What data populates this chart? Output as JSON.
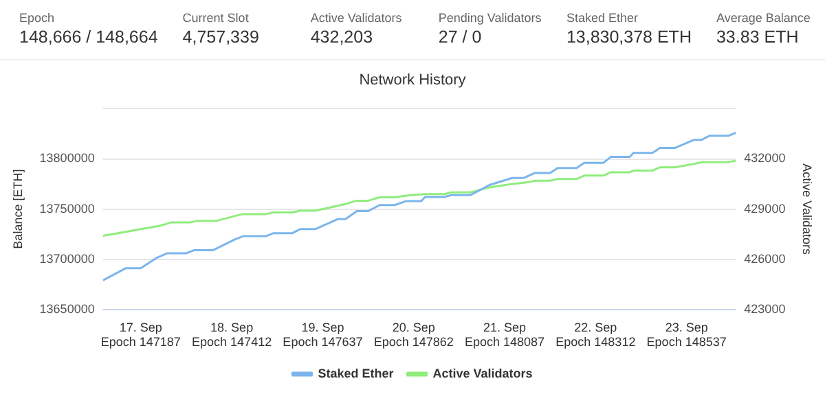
{
  "chart_data": [
    {
      "type": "other",
      "annotations": [
        "Epoch",
        "148,666 / 148,664",
        "Current Slot",
        "4,757,339",
        "Active Validators",
        "432,203",
        "Pending Validators",
        "27 / 0",
        "Staked Ether",
        "13,830,378 ETH",
        "Average Balance",
        "33.83 ETH"
      ]
    },
    {
      "type": "line",
      "title": "Network History",
      "ylabel": "Balance [ETH]",
      "y2label": "Active Validators",
      "xlim": [
        "--09-16T14:00",
        "--09-23T13:00"
      ],
      "xticks": [
        {
          "value": "--09-17",
          "label": "17. Sep\nEpoch 147187"
        },
        {
          "value": "--09-18",
          "label": "18. Sep\nEpoch 147412"
        },
        {
          "value": "--09-19",
          "label": "19. Sep\nEpoch 147637"
        },
        {
          "value": "--09-20",
          "label": "20. Sep\nEpoch 147862"
        },
        {
          "value": "--09-21",
          "label": "21. Sep\nEpoch 148087"
        },
        {
          "value": "--09-22",
          "label": "22. Sep\nEpoch 148312"
        },
        {
          "value": "--09-23",
          "label": "23. Sep\nEpoch 148537"
        }
      ],
      "ylim": [
        13650000,
        13850000
      ],
      "yticks": [
        13650000,
        13700000,
        13750000,
        13800000,
        {
          "value": 13850000,
          "label": null
        }
      ],
      "y2lim": [
        423000,
        435000
      ],
      "y2ticks": [
        423000,
        426000,
        429000,
        432000
      ],
      "grid": "y",
      "legend": "bottom",
      "marker": "none",
      "line_style": "solid",
      "series": [
        {
          "name": "Staked Ether",
          "color": "#7cb5ec",
          "x": [
            "--09-16T14:00",
            "--09-16T20:00",
            "--09-17T00:00",
            "--09-17T04:00",
            "--09-17T07:00",
            "--09-17T12:00",
            "--09-17T14:00",
            "--09-17T19:00",
            "--09-18T01:00",
            "--09-18T03:00",
            "--09-18T09:00",
            "--09-18T11:00",
            "--09-18T16:00",
            "--09-18T18:00",
            "--09-18T22:00",
            "--09-19T04:00",
            "--09-19T06:00",
            "--09-19T09:00",
            "--09-19T12:00",
            "--09-19T15:00",
            "--09-19T19:00",
            "--09-19T22:00",
            "--09-20T02:00",
            "--09-20T03:00",
            "--09-20T08:00",
            "--09-20T10:00",
            "--09-20T15:00",
            "--09-20T20:00",
            "--09-21T02:00",
            "--09-21T05:00",
            "--09-21T08:00",
            "--09-21T12:00",
            "--09-21T14:00",
            "--09-21T19:00",
            "--09-21T21:00",
            "--09-22T02:00",
            "--09-22T04:00",
            "--09-22T09:00",
            "--09-22T10:00",
            "--09-22T15:00",
            "--09-22T17:00",
            "--09-22T21:00",
            "--09-23T02:00",
            "--09-23T04:00",
            "--09-23T06:00",
            "--09-23T11:00",
            "--09-23T13:00"
          ],
          "values": [
            13679000,
            13691000,
            13691000,
            13701000,
            13706000,
            13706000,
            13709000,
            13709000,
            13720000,
            13723000,
            13723000,
            13726000,
            13726000,
            13730000,
            13730000,
            13740000,
            13740000,
            13748000,
            13748000,
            13754000,
            13754000,
            13758000,
            13758000,
            13762000,
            13762000,
            13764000,
            13764000,
            13774000,
            13781000,
            13781000,
            13786000,
            13786000,
            13791000,
            13791000,
            13796000,
            13796000,
            13802000,
            13802000,
            13806000,
            13806000,
            13811000,
            13811000,
            13819000,
            13819000,
            13823000,
            13823000,
            13826000
          ]
        },
        {
          "name": "Active Validators",
          "color": "#90ed7d",
          "axis": "y2",
          "x": [
            "--09-16T14:00",
            "--09-16T19:00",
            "--09-17T00:00",
            "--09-17T05:00",
            "--09-17T08:00",
            "--09-17T13:00",
            "--09-17T15:00",
            "--09-17T20:00",
            "--09-18T01:00",
            "--09-18T03:00",
            "--09-18T09:00",
            "--09-18T11:00",
            "--09-18T16:00",
            "--09-18T18:00",
            "--09-18T22:00",
            "--09-19T04:00",
            "--09-19T06:00",
            "--09-19T09:00",
            "--09-19T12:00",
            "--09-19T15:00",
            "--09-19T19:00",
            "--09-19T22:00",
            "--09-20T03:00",
            "--09-20T08:00",
            "--09-20T10:00",
            "--09-20T15:00",
            "--09-20T20:00",
            "--09-21T02:00",
            "--09-21T06:00",
            "--09-21T08:00",
            "--09-21T12:00",
            "--09-21T14:00",
            "--09-21T19:00",
            "--09-21T21:00",
            "--09-22T02:00",
            "--09-22T04:00",
            "--09-22T09:00",
            "--09-22T10:00",
            "--09-22T15:00",
            "--09-22T17:00",
            "--09-22T21:00",
            "--09-23T02:00",
            "--09-23T04:00",
            "--09-23T06:00",
            "--09-23T11:00",
            "--09-23T13:00"
          ],
          "values": [
            427400,
            427600,
            427800,
            428000,
            428200,
            428200,
            428300,
            428300,
            428600,
            428700,
            428700,
            428800,
            428800,
            428900,
            428900,
            429200,
            429300,
            429500,
            429500,
            429700,
            429700,
            429800,
            429900,
            429900,
            430000,
            430000,
            430300,
            430500,
            430600,
            430700,
            430700,
            430800,
            430800,
            431000,
            431000,
            431200,
            431200,
            431300,
            431300,
            431500,
            431500,
            431700,
            431800,
            431800,
            431800,
            431900
          ]
        }
      ]
    }
  ]
}
